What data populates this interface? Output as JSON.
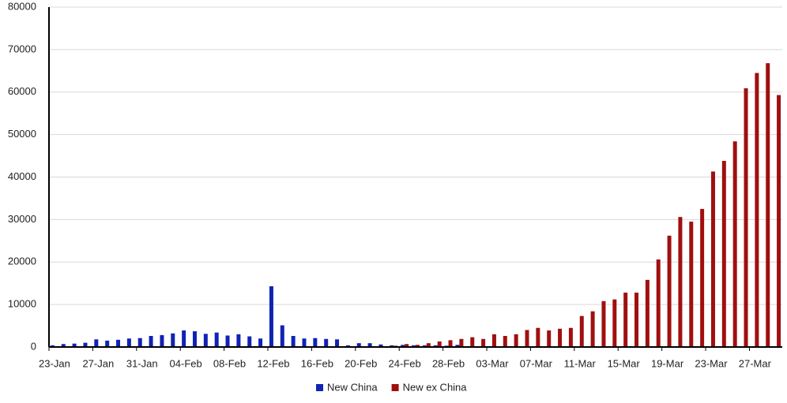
{
  "chart_data": {
    "type": "bar",
    "categories": [
      "23-Jan",
      null,
      null,
      null,
      "27-Jan",
      null,
      null,
      null,
      "31-Jan",
      null,
      null,
      null,
      "04-Feb",
      null,
      null,
      null,
      "08-Feb",
      null,
      null,
      null,
      "12-Feb",
      null,
      null,
      null,
      "16-Feb",
      null,
      null,
      null,
      "20-Feb",
      null,
      null,
      null,
      "24-Feb",
      null,
      null,
      null,
      "28-Feb",
      null,
      null,
      null,
      "03-Mar",
      null,
      null,
      null,
      "07-Mar",
      null,
      null,
      null,
      "11-Mar",
      null,
      null,
      null,
      "15-Mar",
      null,
      null,
      null,
      "19-Mar",
      null,
      null,
      null,
      "23-Mar",
      null,
      null,
      null,
      "27-Mar",
      null,
      null
    ],
    "series": [
      {
        "name": "New China",
        "color": "#0f23b4",
        "values": [
          400,
          700,
          800,
          1000,
          1800,
          1500,
          1700,
          2000,
          2100,
          2600,
          2800,
          3200,
          3900,
          3700,
          3100,
          3400,
          2700,
          3000,
          2500,
          2000,
          14300,
          5100,
          2600,
          2000,
          2100,
          1900,
          1800,
          400,
          900,
          900,
          600,
          400,
          500,
          400,
          400,
          400,
          300,
          500,
          200,
          130,
          120,
          140,
          100,
          50,
          40,
          20,
          40,
          20,
          20,
          10,
          20,
          20,
          20,
          30,
          40,
          50,
          50,
          40,
          50,
          80,
          60,
          50,
          70,
          60,
          50,
          40,
          30
        ]
      },
      {
        "name": "New ex China",
        "color": "#a00f0f",
        "values": [
          10,
          10,
          20,
          20,
          20,
          10,
          20,
          10,
          20,
          20,
          20,
          30,
          20,
          10,
          20,
          20,
          30,
          20,
          10,
          50,
          40,
          30,
          20,
          60,
          80,
          90,
          40,
          70,
          100,
          150,
          200,
          300,
          700,
          500,
          900,
          1300,
          1600,
          1900,
          2300,
          1900,
          3000,
          2600,
          3000,
          4000,
          4500,
          3900,
          4300,
          4500,
          7300,
          8400,
          10800,
          11200,
          12800,
          12800,
          15800,
          20600,
          26200,
          30600,
          29500,
          32500,
          41300,
          43800,
          48400,
          60900,
          64500,
          66800,
          59300
        ]
      }
    ],
    "ylim": [
      0,
      80000
    ],
    "yticks": [
      0,
      10000,
      20000,
      30000,
      40000,
      50000,
      60000,
      70000,
      80000
    ],
    "grid": true,
    "legend": "bottom"
  }
}
